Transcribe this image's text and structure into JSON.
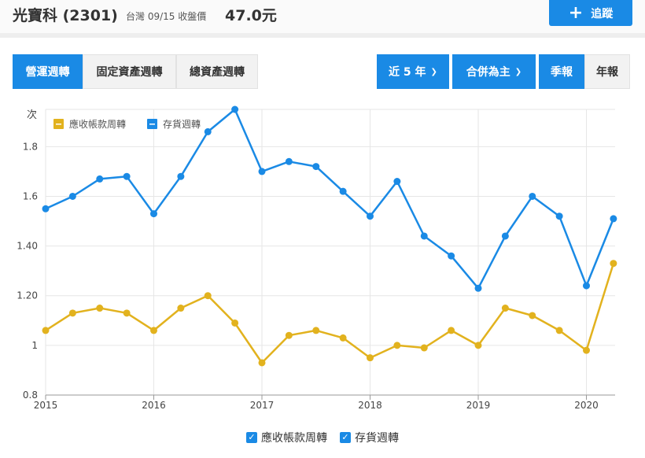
{
  "header": {
    "stock_name": "光寶科 (2301)",
    "price_info": "台灣 09/15 收盤價",
    "price": "47.0元",
    "follow_label": "追蹤"
  },
  "tabs_left": [
    "營運週轉",
    "固定資產週轉",
    "總資產週轉"
  ],
  "tabs_right": {
    "period": "近 5 年",
    "consolidation": "合併為主",
    "quarterly": "季報",
    "annual": "年報"
  },
  "colors": {
    "accent": "#1a8ae5",
    "series_receivable": "#e2b21e",
    "series_inventory": "#1a8ae5"
  },
  "chart_data": {
    "type": "line",
    "ylabel": "次",
    "ylim": [
      0.8,
      1.95
    ],
    "yticks": [
      {
        "value": 0.8,
        "label": "0.8"
      },
      {
        "value": 1.0,
        "label": "1"
      },
      {
        "value": 1.2,
        "label": "1.20"
      },
      {
        "value": 1.4,
        "label": "1.40"
      },
      {
        "value": 1.6,
        "label": "1.6"
      },
      {
        "value": 1.8,
        "label": "1.8"
      }
    ],
    "xticks": [
      "2015",
      "2016",
      "2017",
      "2018",
      "2019",
      "2020"
    ],
    "x": [
      "2015Q1",
      "2015Q2",
      "2015Q3",
      "2015Q4",
      "2016Q1",
      "2016Q2",
      "2016Q3",
      "2016Q4",
      "2017Q1",
      "2017Q2",
      "2017Q3",
      "2017Q4",
      "2018Q1",
      "2018Q2",
      "2018Q3",
      "2018Q4",
      "2019Q1",
      "2019Q2",
      "2019Q3",
      "2019Q4",
      "2020Q1",
      "2020Q2"
    ],
    "series": [
      {
        "name": "應收帳款周轉",
        "color": "#e2b21e",
        "values": [
          1.06,
          1.13,
          1.15,
          1.13,
          1.06,
          1.15,
          1.2,
          1.09,
          0.93,
          1.04,
          1.06,
          1.03,
          0.95,
          1.0,
          0.99,
          1.06,
          1.0,
          1.15,
          1.12,
          1.06,
          0.98,
          1.33
        ]
      },
      {
        "name": "存貨週轉",
        "color": "#1a8ae5",
        "values": [
          1.55,
          1.6,
          1.67,
          1.68,
          1.53,
          1.68,
          1.86,
          1.95,
          1.7,
          1.74,
          1.72,
          1.62,
          1.52,
          1.66,
          1.44,
          1.36,
          1.23,
          1.44,
          1.6,
          1.52,
          1.24,
          1.51
        ]
      }
    ],
    "legend_position": "top-left",
    "grid": true
  }
}
